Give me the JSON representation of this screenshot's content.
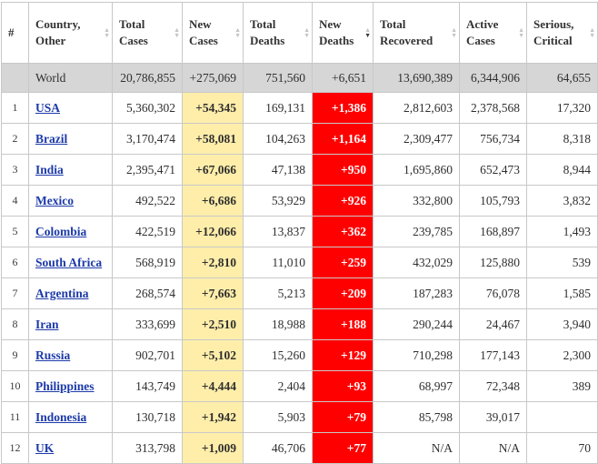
{
  "colors": {
    "link": "#1c3aa9",
    "new_cases_bg": "#ffeeaa",
    "new_deaths_bg": "#ff0000",
    "new_deaths_text": "#ffffff",
    "world_row_bg": "#d6d6d6",
    "header_text": "#333333",
    "border": "#c8c8c8"
  },
  "table": {
    "columns": [
      {
        "key": "rank",
        "label": "#",
        "sortable": false
      },
      {
        "key": "country",
        "label": "Country, Other",
        "sortable": true
      },
      {
        "key": "total_cases",
        "label": "Total Cases",
        "sortable": true
      },
      {
        "key": "new_cases",
        "label": "New Cases",
        "sortable": true
      },
      {
        "key": "total_deaths",
        "label": "Total Deaths",
        "sortable": true
      },
      {
        "key": "new_deaths",
        "label": "New Deaths",
        "sortable": true,
        "sorted": "desc"
      },
      {
        "key": "total_recovered",
        "label": "Total Recovered",
        "sortable": true
      },
      {
        "key": "active_cases",
        "label": "Active Cases",
        "sortable": true
      },
      {
        "key": "serious_critical",
        "label": "Serious, Critical",
        "sortable": true
      }
    ],
    "world_row": {
      "rank": "",
      "country": "World",
      "total_cases": "20,786,855",
      "new_cases": "+275,069",
      "total_deaths": "751,560",
      "new_deaths": "+6,651",
      "total_recovered": "13,690,389",
      "active_cases": "6,344,906",
      "serious_critical": "64,655"
    },
    "rows": [
      {
        "rank": "1",
        "country": "USA",
        "total_cases": "5,360,302",
        "new_cases": "+54,345",
        "total_deaths": "169,131",
        "new_deaths": "+1,386",
        "total_recovered": "2,812,603",
        "active_cases": "2,378,568",
        "serious_critical": "17,320"
      },
      {
        "rank": "2",
        "country": "Brazil",
        "total_cases": "3,170,474",
        "new_cases": "+58,081",
        "total_deaths": "104,263",
        "new_deaths": "+1,164",
        "total_recovered": "2,309,477",
        "active_cases": "756,734",
        "serious_critical": "8,318"
      },
      {
        "rank": "3",
        "country": "India",
        "total_cases": "2,395,471",
        "new_cases": "+67,066",
        "total_deaths": "47,138",
        "new_deaths": "+950",
        "total_recovered": "1,695,860",
        "active_cases": "652,473",
        "serious_critical": "8,944"
      },
      {
        "rank": "4",
        "country": "Mexico",
        "total_cases": "492,522",
        "new_cases": "+6,686",
        "total_deaths": "53,929",
        "new_deaths": "+926",
        "total_recovered": "332,800",
        "active_cases": "105,793",
        "serious_critical": "3,832"
      },
      {
        "rank": "5",
        "country": "Colombia",
        "total_cases": "422,519",
        "new_cases": "+12,066",
        "total_deaths": "13,837",
        "new_deaths": "+362",
        "total_recovered": "239,785",
        "active_cases": "168,897",
        "serious_critical": "1,493"
      },
      {
        "rank": "6",
        "country": "South Africa",
        "total_cases": "568,919",
        "new_cases": "+2,810",
        "total_deaths": "11,010",
        "new_deaths": "+259",
        "total_recovered": "432,029",
        "active_cases": "125,880",
        "serious_critical": "539"
      },
      {
        "rank": "7",
        "country": "Argentina",
        "total_cases": "268,574",
        "new_cases": "+7,663",
        "total_deaths": "5,213",
        "new_deaths": "+209",
        "total_recovered": "187,283",
        "active_cases": "76,078",
        "serious_critical": "1,585"
      },
      {
        "rank": "8",
        "country": "Iran",
        "total_cases": "333,699",
        "new_cases": "+2,510",
        "total_deaths": "18,988",
        "new_deaths": "+188",
        "total_recovered": "290,244",
        "active_cases": "24,467",
        "serious_critical": "3,940"
      },
      {
        "rank": "9",
        "country": "Russia",
        "total_cases": "902,701",
        "new_cases": "+5,102",
        "total_deaths": "15,260",
        "new_deaths": "+129",
        "total_recovered": "710,298",
        "active_cases": "177,143",
        "serious_critical": "2,300"
      },
      {
        "rank": "10",
        "country": "Philippines",
        "total_cases": "143,749",
        "new_cases": "+4,444",
        "total_deaths": "2,404",
        "new_deaths": "+93",
        "total_recovered": "68,997",
        "active_cases": "72,348",
        "serious_critical": "389"
      },
      {
        "rank": "11",
        "country": "Indonesia",
        "total_cases": "130,718",
        "new_cases": "+1,942",
        "total_deaths": "5,903",
        "new_deaths": "+79",
        "total_recovered": "85,798",
        "active_cases": "39,017",
        "serious_critical": ""
      },
      {
        "rank": "12",
        "country": "UK",
        "total_cases": "313,798",
        "new_cases": "+1,009",
        "total_deaths": "46,706",
        "new_deaths": "+77",
        "total_recovered": "N/A",
        "active_cases": "N/A",
        "serious_critical": "70"
      }
    ]
  }
}
